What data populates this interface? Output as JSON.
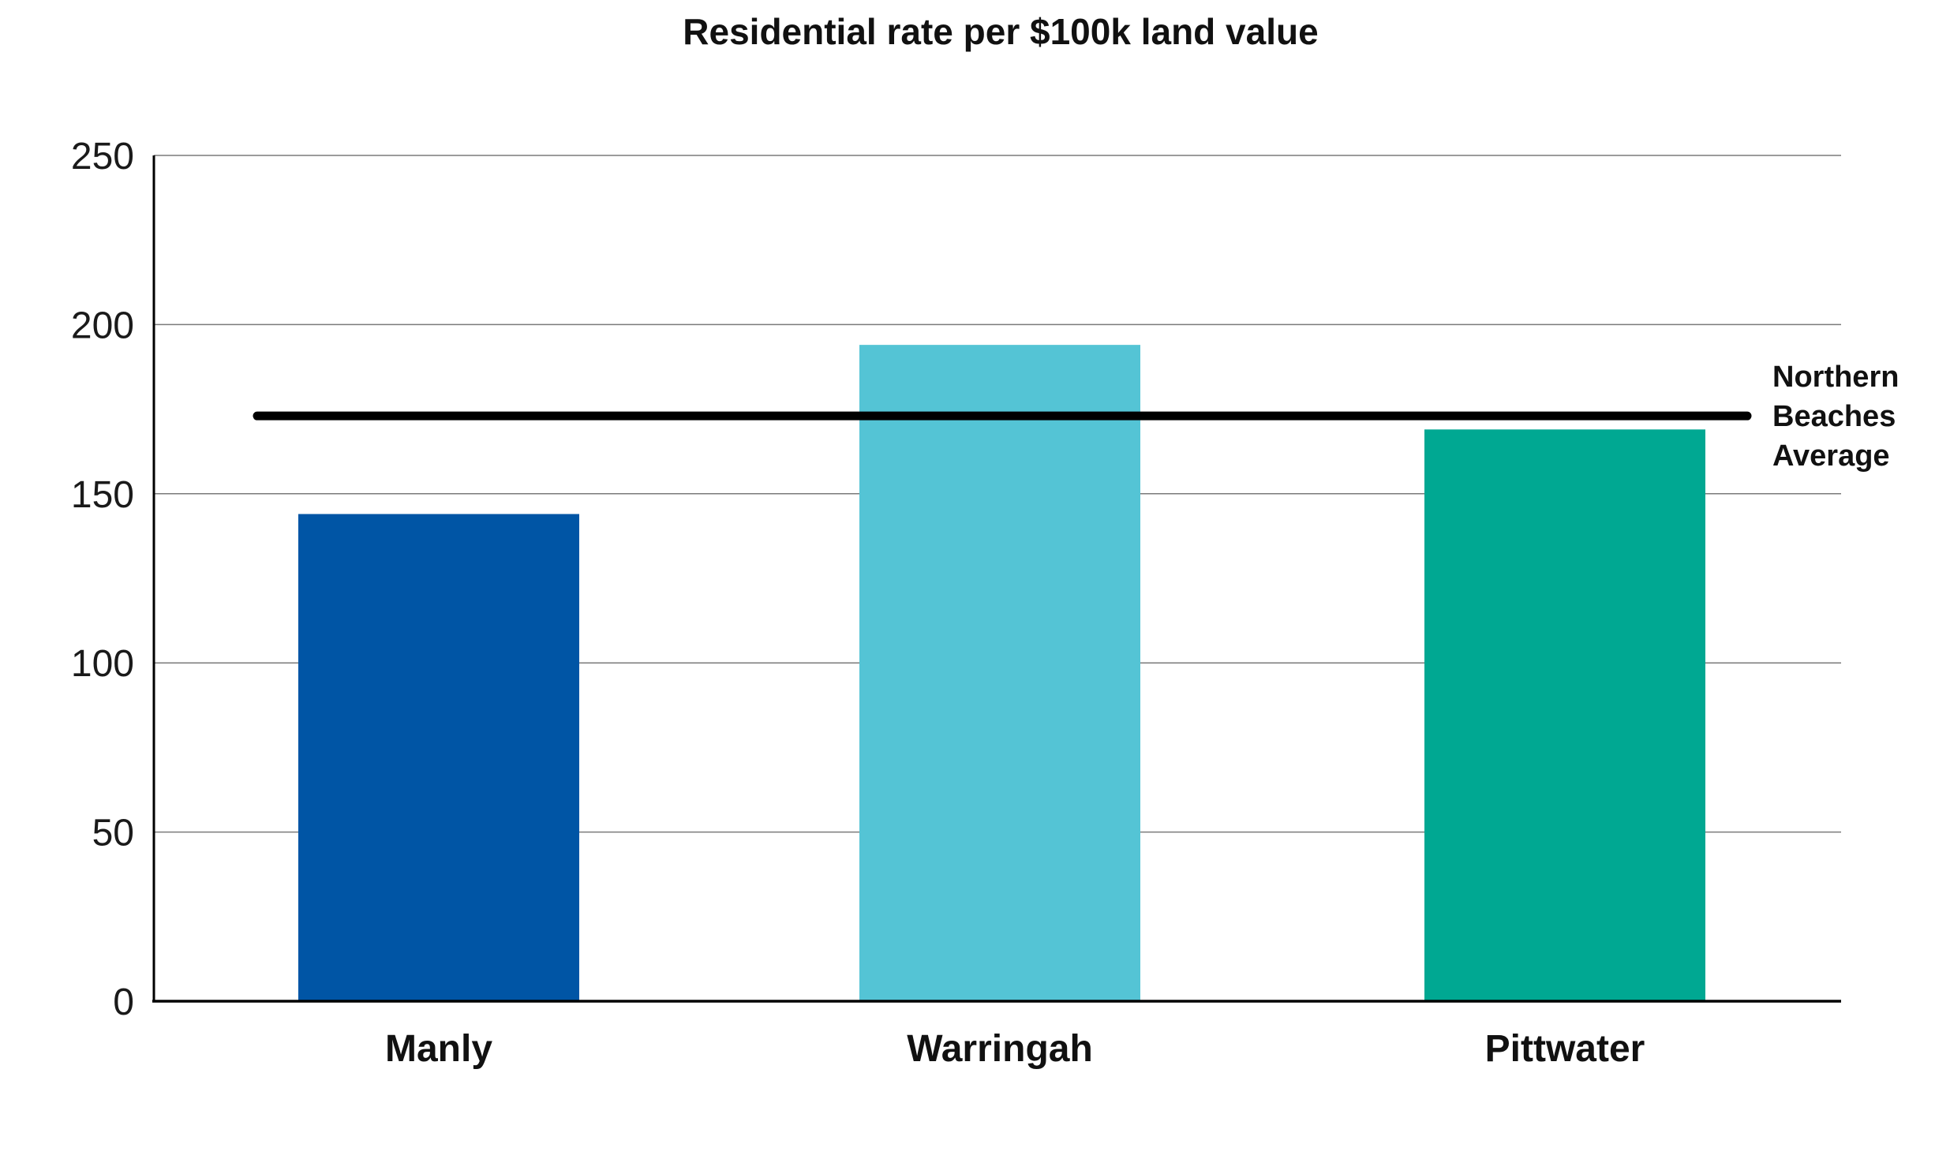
{
  "chart_data": {
    "type": "bar",
    "title": "Residential rate per $100k land value",
    "xlabel": "",
    "ylabel": "",
    "categories": [
      "Manly",
      "Warringah",
      "Pittwater"
    ],
    "values": [
      144,
      194,
      169
    ],
    "colors": [
      "#0055a5",
      "#54c4d5",
      "#00a892"
    ],
    "ylim": [
      0,
      250
    ],
    "yticks": [
      0,
      50,
      100,
      150,
      200,
      250
    ],
    "ytick_labels": [
      "0",
      "50",
      "100",
      "150",
      "200",
      "250"
    ],
    "grid": true,
    "reference_line": {
      "value": 173,
      "label_lines": [
        "Northern",
        "Beaches",
        "Average"
      ],
      "color": "#000000"
    }
  }
}
